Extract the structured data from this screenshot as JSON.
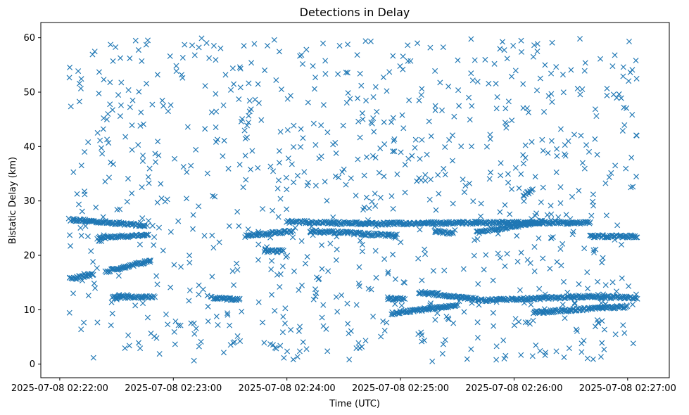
{
  "chart_data": {
    "type": "scatter",
    "title": "Detections in Delay",
    "xlabel": "Time (UTC)",
    "ylabel": "Bistatic Delay (km)",
    "x_axis": {
      "kind": "datetime",
      "range": [
        "2025-07-08 02:21:50",
        "2025-07-08 02:27:22"
      ],
      "ticks": [
        "2025-07-08 02:22:00",
        "2025-07-08 02:23:00",
        "2025-07-08 02:24:00",
        "2025-07-08 02:25:00",
        "2025-07-08 02:26:00",
        "2025-07-08 02:27:00"
      ]
    },
    "y_axis": {
      "range": [
        -2.5,
        62.8
      ],
      "ticks": [
        0,
        10,
        20,
        30,
        40,
        50,
        60
      ]
    },
    "marker": "x",
    "color": "#1f77b4",
    "grid": false,
    "legend": "none",
    "series": [
      {
        "tracks": [
          {
            "t_start": "2025-07-08 02:22:05",
            "y_start": 26.6,
            "t_end": "2025-07-08 02:22:45",
            "y_end": 25.5
          },
          {
            "t_start": "2025-07-08 02:22:05",
            "y_start": 15.7,
            "t_end": "2025-07-08 02:22:18",
            "y_end": 16.5
          },
          {
            "t_start": "2025-07-08 02:22:24",
            "y_start": 17.0,
            "t_end": "2025-07-08 02:22:48",
            "y_end": 19.0
          },
          {
            "t_start": "2025-07-08 02:22:20",
            "y_start": 23.2,
            "t_end": "2025-07-08 02:22:47",
            "y_end": 23.8
          },
          {
            "t_start": "2025-07-08 02:22:28",
            "y_start": 12.3,
            "t_end": "2025-07-08 02:22:50",
            "y_end": 12.3
          },
          {
            "t_start": "2025-07-08 02:23:20",
            "y_start": 12.2,
            "t_end": "2025-07-08 02:23:35",
            "y_end": 11.8
          },
          {
            "t_start": "2025-07-08 02:23:38",
            "y_start": 23.6,
            "t_end": "2025-07-08 02:24:03",
            "y_end": 24.5
          },
          {
            "t_start": "2025-07-08 02:23:48",
            "y_start": 20.8,
            "t_end": "2025-07-08 02:23:58",
            "y_end": 20.8
          },
          {
            "t_start": "2025-07-08 02:24:00",
            "y_start": 26.2,
            "t_end": "2025-07-08 02:24:42",
            "y_end": 25.8
          },
          {
            "t_start": "2025-07-08 02:24:12",
            "y_start": 24.5,
            "t_end": "2025-07-08 02:24:58",
            "y_end": 23.6
          },
          {
            "t_start": "2025-07-08 02:24:42",
            "y_start": 25.8,
            "t_end": "2025-07-08 02:25:40",
            "y_end": 26.0
          },
          {
            "t_start": "2025-07-08 02:24:53",
            "y_start": 12.1,
            "t_end": "2025-07-08 02:25:02",
            "y_end": 12.0
          },
          {
            "t_start": "2025-07-08 02:24:55",
            "y_start": 9.3,
            "t_end": "2025-07-08 02:25:30",
            "y_end": 10.8
          },
          {
            "t_start": "2025-07-08 02:25:10",
            "y_start": 13.2,
            "t_end": "2025-07-08 02:25:45",
            "y_end": 11.7
          },
          {
            "t_start": "2025-07-08 02:25:45",
            "y_start": 11.7,
            "t_end": "2025-07-08 02:26:35",
            "y_end": 12.4
          },
          {
            "t_start": "2025-07-08 02:26:35",
            "y_start": 12.4,
            "t_end": "2025-07-08 02:27:05",
            "y_end": 12.2
          },
          {
            "t_start": "2025-07-08 02:25:18",
            "y_start": 24.5,
            "t_end": "2025-07-08 02:25:28",
            "y_end": 24.0
          },
          {
            "t_start": "2025-07-08 02:25:40",
            "y_start": 24.2,
            "t_end": "2025-07-08 02:26:15",
            "y_end": 26.2
          },
          {
            "t_start": "2025-07-08 02:25:40",
            "y_start": 26.0,
            "t_end": "2025-07-08 02:26:40",
            "y_end": 26.0
          },
          {
            "t_start": "2025-07-08 02:26:40",
            "y_start": 23.5,
            "t_end": "2025-07-08 02:27:05",
            "y_end": 23.5
          },
          {
            "t_start": "2025-07-08 02:26:10",
            "y_start": 9.5,
            "t_end": "2025-07-08 02:27:00",
            "y_end": 10.6
          },
          {
            "t_start": "2025-07-08 02:26:05",
            "y_start": 31.0,
            "t_end": "2025-07-08 02:26:10",
            "y_end": 32.0
          }
        ],
        "clutter": {
          "t_range": [
            "2025-07-08 02:22:05",
            "2025-07-08 02:27:05"
          ],
          "y_range": [
            0.5,
            60
          ]
        }
      }
    ]
  }
}
